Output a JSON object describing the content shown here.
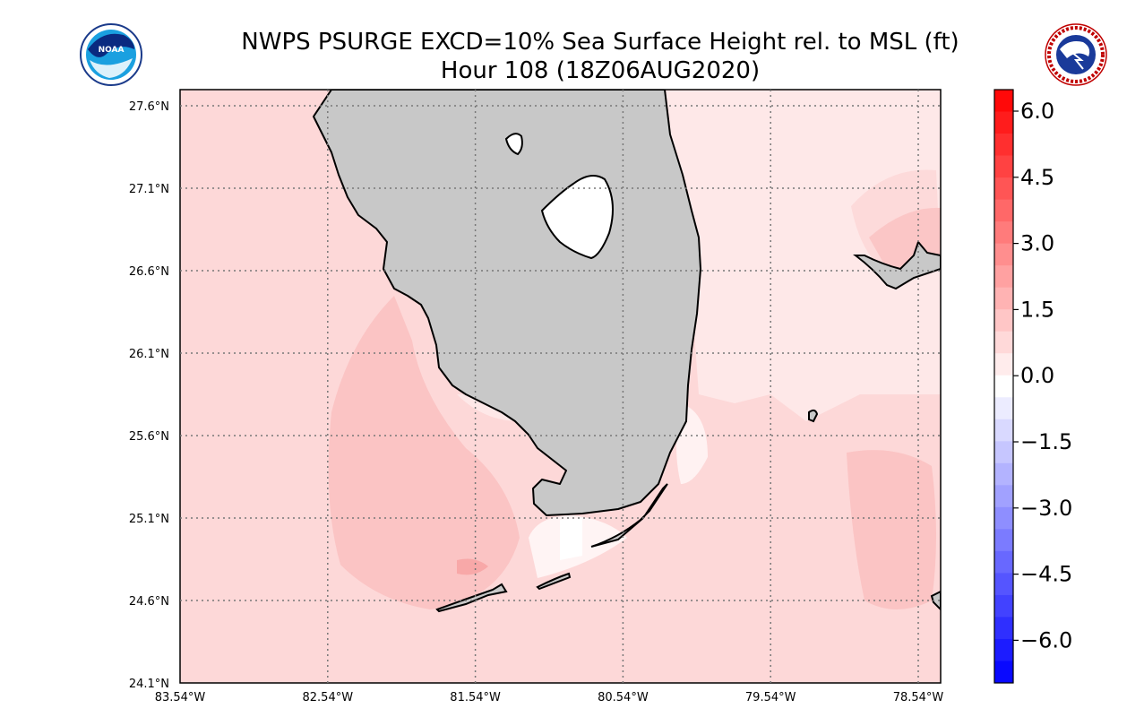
{
  "header": {
    "title_line1": "NWPS PSURGE EXCD=10% Sea Surface Height rel. to MSL (ft)",
    "title_line2": "Hour 108 (18Z06AUG2020)"
  },
  "logos": {
    "left": {
      "icon": "noaa-logo-icon",
      "text": "NOAA"
    },
    "right": {
      "icon": "nws-logo-icon",
      "text": "NATIONAL WEATHER SERVICE"
    }
  },
  "map": {
    "lat_labels": [
      "27.6°N",
      "27.1°N",
      "26.6°N",
      "26.1°N",
      "25.6°N",
      "25.1°N",
      "24.6°N",
      "24.1°N"
    ],
    "lon_labels": [
      "83.54°W",
      "82.54°W",
      "81.54°W",
      "80.54°W",
      "79.54°W",
      "78.54°W"
    ],
    "colors": {
      "land": "#c8c8c8",
      "background_surge": "#fdd8d8",
      "medium_surge": "#fbc4c4",
      "low_surge": "#fee8e8",
      "lake": "#ffffff"
    }
  },
  "colorbar": {
    "tick_labels": [
      "6.0",
      "4.5",
      "3.0",
      "1.5",
      "0.0",
      "−1.5",
      "−3.0",
      "−4.5",
      "−6.0"
    ],
    "levels": [
      -6.0,
      -4.5,
      -3.0,
      -1.5,
      0.0,
      1.5,
      3.0,
      4.5,
      6.0
    ],
    "min_color": "#0000ff",
    "zero_color": "#ffffff",
    "max_color": "#ff0000"
  }
}
